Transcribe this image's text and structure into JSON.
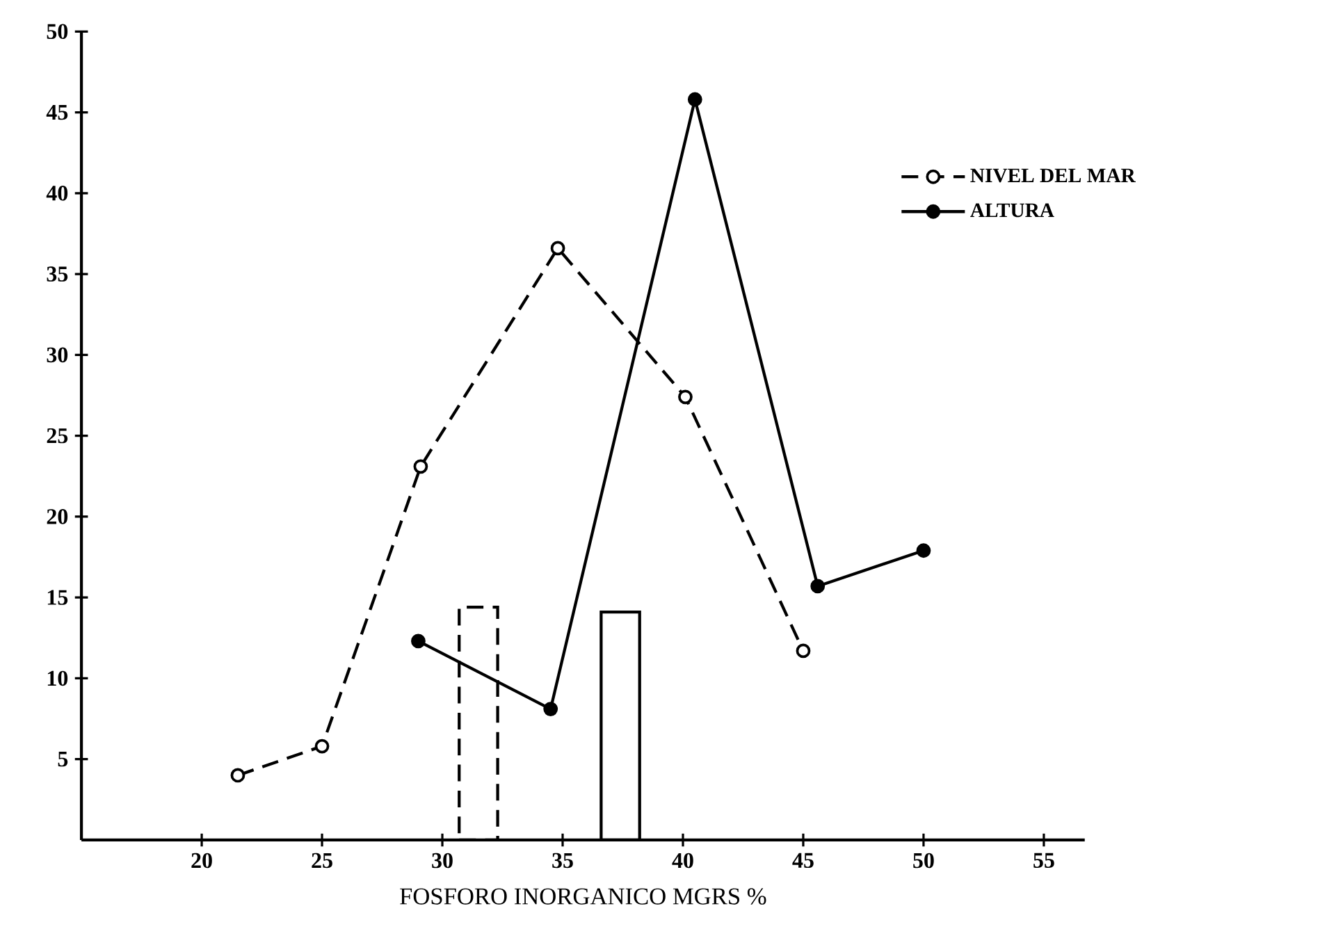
{
  "chart_data": {
    "type": "line",
    "xlabel": "FOSFORO INORGANICO MGRS %",
    "xlim": [
      15,
      56.7
    ],
    "ylim": [
      0,
      50
    ],
    "xticks": [
      20,
      25,
      30,
      35,
      40,
      45,
      50,
      55
    ],
    "yticks": [
      5,
      10,
      15,
      20,
      25,
      30,
      35,
      40,
      45,
      50
    ],
    "marker": "circle",
    "legend": "top right",
    "series": [
      {
        "name": "NIVEL DEL MAR",
        "color": "#000000",
        "line_style": "dashed",
        "x": [
          21.5,
          25,
          29.1,
          34.8,
          40.1,
          45
        ],
        "values": [
          4,
          5.8,
          23.1,
          36.6,
          27.4,
          11.7
        ]
      },
      {
        "name": "ALTURA",
        "color": "#000000",
        "line_style": "solid",
        "x": [
          29,
          34.5,
          40.5,
          45.6,
          50
        ],
        "values": [
          12.3,
          8.1,
          45.8,
          15.7,
          17.9
        ]
      },
      {
        "type": "bar",
        "color": "#000000",
        "line_style": "dashed",
        "x": [
          31.5
        ],
        "values": [
          14.4
        ]
      },
      {
        "type": "bar",
        "color": "#000000",
        "line_style": "solid",
        "x": [
          37.4
        ],
        "values": [
          14.1
        ]
      }
    ]
  }
}
